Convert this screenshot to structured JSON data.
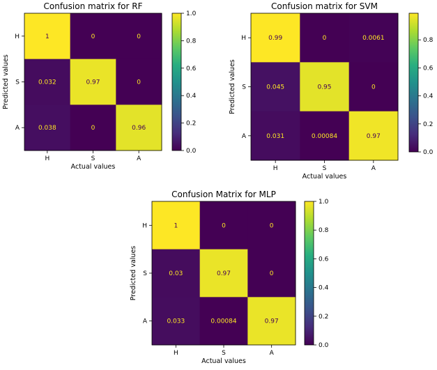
{
  "figure": {
    "background": "#ffffff"
  },
  "chart_data": [
    {
      "type": "heatmap",
      "title": "Confusion matrix for RF",
      "xlabel": "Actual values",
      "ylabel": "Predicted values",
      "x_categories": [
        "H",
        "S",
        "A"
      ],
      "y_categories": [
        "H",
        "S",
        "A"
      ],
      "values": [
        [
          1,
          0,
          0
        ],
        [
          0.032,
          0.97,
          0
        ],
        [
          0.038,
          0,
          0.96
        ]
      ],
      "labels": [
        [
          "1",
          "0",
          "0"
        ],
        [
          "0.032",
          "0.97",
          "0"
        ],
        [
          "0.038",
          "0",
          "0.96"
        ]
      ],
      "colormap": "viridis",
      "vmin": 0,
      "vmax": 1.0,
      "colorbar_ticks": [
        0.0,
        0.2,
        0.4,
        0.6,
        0.8,
        1.0
      ],
      "colorbar_tick_labels": [
        "0.0",
        "0.2",
        "0.4",
        "0.6",
        "0.8",
        "1.0"
      ]
    },
    {
      "type": "heatmap",
      "title": "Confusion matrix for SVM",
      "xlabel": "Actual values",
      "ylabel": "Predicted values",
      "x_categories": [
        "H",
        "S",
        "A"
      ],
      "y_categories": [
        "H",
        "S",
        "A"
      ],
      "values": [
        [
          0.99,
          0,
          0.0061
        ],
        [
          0.045,
          0.95,
          0
        ],
        [
          0.031,
          0.00084,
          0.97
        ]
      ],
      "labels": [
        [
          "0.99",
          "0",
          "0.0061"
        ],
        [
          "0.045",
          "0.95",
          "0"
        ],
        [
          "0.031",
          "0.00084",
          "0.97"
        ]
      ],
      "colormap": "viridis",
      "vmin": 0,
      "vmax": 0.99,
      "colorbar_ticks": [
        0.0,
        0.2,
        0.4,
        0.6,
        0.8
      ],
      "colorbar_tick_labels": [
        "0.0",
        "0.2",
        "0.4",
        "0.6",
        "0.8"
      ]
    },
    {
      "type": "heatmap",
      "title": "Confusion Matrix for MLP",
      "xlabel": "Actual values",
      "ylabel": "Predicted values",
      "x_categories": [
        "H",
        "S",
        "A"
      ],
      "y_categories": [
        "H",
        "S",
        "A"
      ],
      "values": [
        [
          1,
          0,
          0
        ],
        [
          0.03,
          0.97,
          0
        ],
        [
          0.033,
          0.00084,
          0.97
        ]
      ],
      "labels": [
        [
          "1",
          "0",
          "0"
        ],
        [
          "0.03",
          "0.97",
          "0"
        ],
        [
          "0.033",
          "0.00084",
          "0.97"
        ]
      ],
      "colormap": "viridis",
      "vmin": 0,
      "vmax": 1.0,
      "colorbar_ticks": [
        0.0,
        0.2,
        0.4,
        0.6,
        0.8,
        1.0
      ],
      "colorbar_tick_labels": [
        "0.0",
        "0.2",
        "0.4",
        "0.6",
        "0.8",
        "1.0"
      ]
    }
  ]
}
